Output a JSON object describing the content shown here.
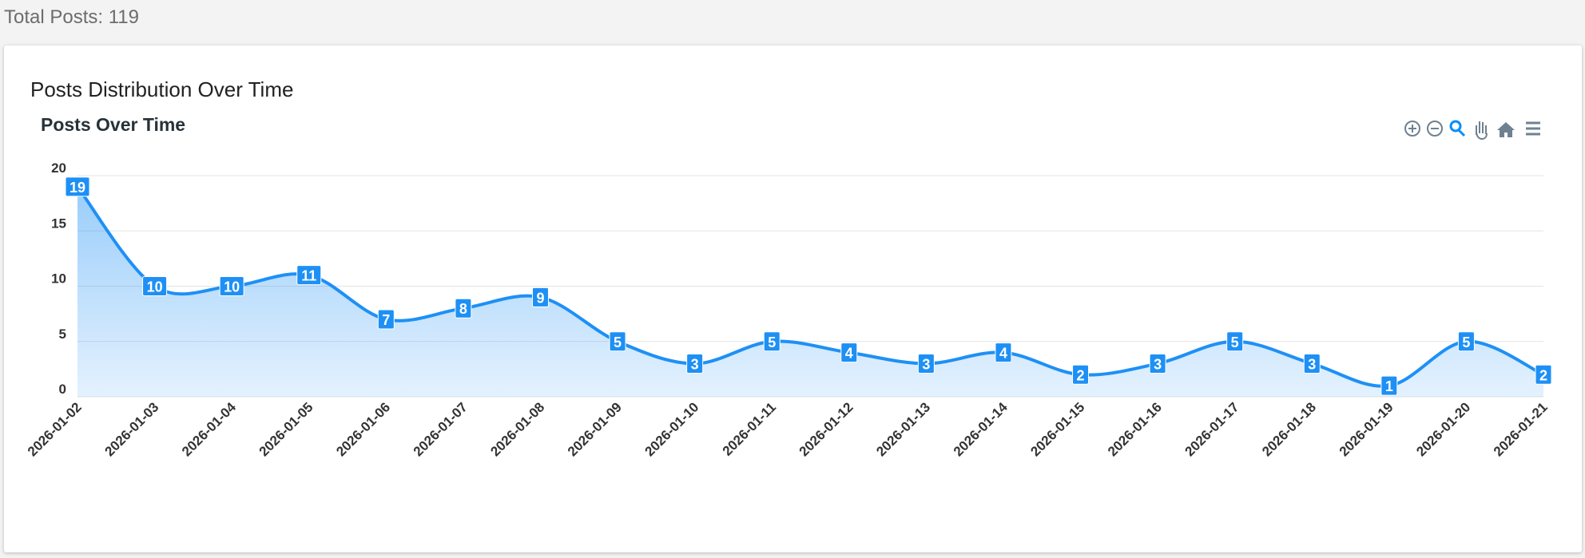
{
  "header": {
    "total_label": "Total Posts:",
    "total": 119
  },
  "card": {
    "title": "Posts Distribution Over Time"
  },
  "chart_data": {
    "type": "area",
    "title": "Posts Over Time",
    "categories": [
      "2026-01-02",
      "2026-01-03",
      "2026-01-04",
      "2026-01-05",
      "2026-01-06",
      "2026-01-07",
      "2026-01-08",
      "2026-01-09",
      "2026-01-10",
      "2026-01-11",
      "2026-01-12",
      "2026-01-13",
      "2026-01-14",
      "2026-01-15",
      "2026-01-16",
      "2026-01-17",
      "2026-01-18",
      "2026-01-19",
      "2026-01-20",
      "2026-01-21"
    ],
    "values": [
      19,
      10,
      10,
      11,
      7,
      8,
      9,
      5,
      3,
      5,
      4,
      3,
      4,
      2,
      3,
      5,
      3,
      1,
      5,
      2
    ],
    "color": "#1e90f5",
    "ylim": [
      0,
      20
    ],
    "yticks": [
      0,
      5,
      10,
      15,
      20
    ],
    "grid": true,
    "data_labels": true
  }
}
